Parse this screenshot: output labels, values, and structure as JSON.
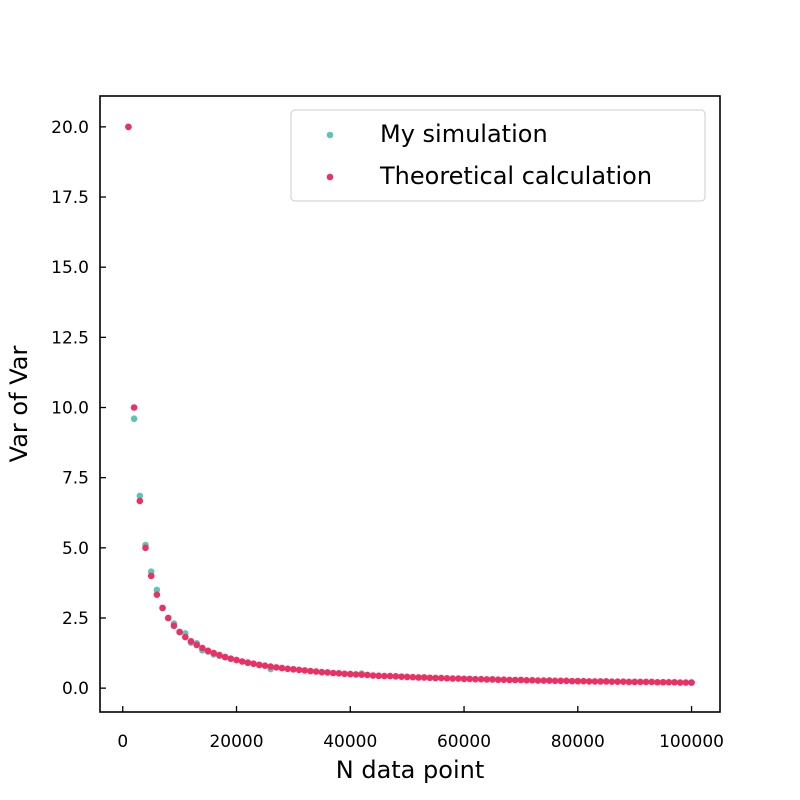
{
  "chart_data": {
    "type": "scatter",
    "title": "",
    "xlabel": "N data point",
    "ylabel": "Var of Var",
    "xlim": [
      -4000,
      105000
    ],
    "ylim": [
      -0.85,
      21.1
    ],
    "xticks": [
      0,
      20000,
      40000,
      60000,
      80000,
      100000
    ],
    "xtick_labels": [
      "0",
      "20000",
      "40000",
      "60000",
      "80000",
      "100000"
    ],
    "yticks": [
      0.0,
      2.5,
      5.0,
      7.5,
      10.0,
      12.5,
      15.0,
      17.5,
      20.0
    ],
    "ytick_labels": [
      "0.0",
      "2.5",
      "5.0",
      "7.5",
      "10.0",
      "12.5",
      "15.0",
      "17.5",
      "20.0"
    ],
    "grid": false,
    "legend_position": "top-right",
    "series": [
      {
        "name": "My simulation",
        "color": "#5ec4b8",
        "x": [
          1000,
          2000,
          3000,
          4000,
          5000,
          6000,
          7000,
          8000,
          9000,
          10000,
          11000,
          12000,
          13000,
          14000,
          15000,
          16000,
          17000,
          18000,
          19000,
          20000,
          22000,
          24000,
          26000,
          28000,
          30000,
          35000,
          40000,
          42000,
          45000,
          50000,
          55000,
          60000,
          65000,
          70000,
          75000,
          80000,
          85000,
          90000,
          95000,
          100000
        ],
        "y": [
          20.0,
          9.6,
          6.85,
          5.1,
          4.15,
          3.5,
          2.85,
          2.5,
          2.3,
          2.0,
          1.95,
          1.62,
          1.6,
          1.35,
          1.3,
          1.2,
          1.15,
          1.1,
          1.05,
          1.0,
          0.9,
          0.82,
          0.68,
          0.72,
          0.67,
          0.57,
          0.5,
          0.52,
          0.44,
          0.4,
          0.36,
          0.33,
          0.31,
          0.29,
          0.27,
          0.25,
          0.24,
          0.22,
          0.21,
          0.2
        ]
      },
      {
        "name": "Theoretical calculation",
        "color": "#ee2f63",
        "x": [
          1000,
          2000,
          3000,
          4000,
          5000,
          6000,
          7000,
          8000,
          9000,
          10000,
          11000,
          12000,
          13000,
          14000,
          15000,
          16000,
          17000,
          18000,
          19000,
          20000,
          21000,
          22000,
          23000,
          24000,
          25000,
          26000,
          27000,
          28000,
          29000,
          30000,
          31000,
          32000,
          33000,
          34000,
          35000,
          36000,
          37000,
          38000,
          39000,
          40000,
          41000,
          42000,
          43000,
          44000,
          45000,
          46000,
          47000,
          48000,
          49000,
          50000,
          51000,
          52000,
          53000,
          54000,
          55000,
          56000,
          57000,
          58000,
          59000,
          60000,
          61000,
          62000,
          63000,
          64000,
          65000,
          66000,
          67000,
          68000,
          69000,
          70000,
          71000,
          72000,
          73000,
          74000,
          75000,
          76000,
          77000,
          78000,
          79000,
          80000,
          81000,
          82000,
          83000,
          84000,
          85000,
          86000,
          87000,
          88000,
          89000,
          90000,
          91000,
          92000,
          93000,
          94000,
          95000,
          96000,
          97000,
          98000,
          99000,
          100000
        ],
        "y": [
          20.0,
          10.0,
          6.67,
          5.0,
          4.0,
          3.33,
          2.86,
          2.5,
          2.22,
          2.0,
          1.82,
          1.67,
          1.54,
          1.43,
          1.33,
          1.25,
          1.18,
          1.11,
          1.05,
          1.0,
          0.95,
          0.91,
          0.87,
          0.83,
          0.8,
          0.77,
          0.74,
          0.71,
          0.69,
          0.67,
          0.65,
          0.63,
          0.61,
          0.59,
          0.57,
          0.56,
          0.54,
          0.53,
          0.51,
          0.5,
          0.49,
          0.48,
          0.47,
          0.45,
          0.44,
          0.43,
          0.43,
          0.42,
          0.41,
          0.4,
          0.39,
          0.38,
          0.38,
          0.37,
          0.36,
          0.36,
          0.35,
          0.34,
          0.34,
          0.33,
          0.33,
          0.32,
          0.32,
          0.31,
          0.31,
          0.3,
          0.3,
          0.29,
          0.29,
          0.29,
          0.28,
          0.28,
          0.27,
          0.27,
          0.27,
          0.26,
          0.26,
          0.26,
          0.25,
          0.25,
          0.25,
          0.24,
          0.24,
          0.24,
          0.24,
          0.23,
          0.23,
          0.23,
          0.22,
          0.22,
          0.22,
          0.22,
          0.22,
          0.21,
          0.21,
          0.21,
          0.21,
          0.2,
          0.2,
          0.2
        ]
      }
    ]
  }
}
